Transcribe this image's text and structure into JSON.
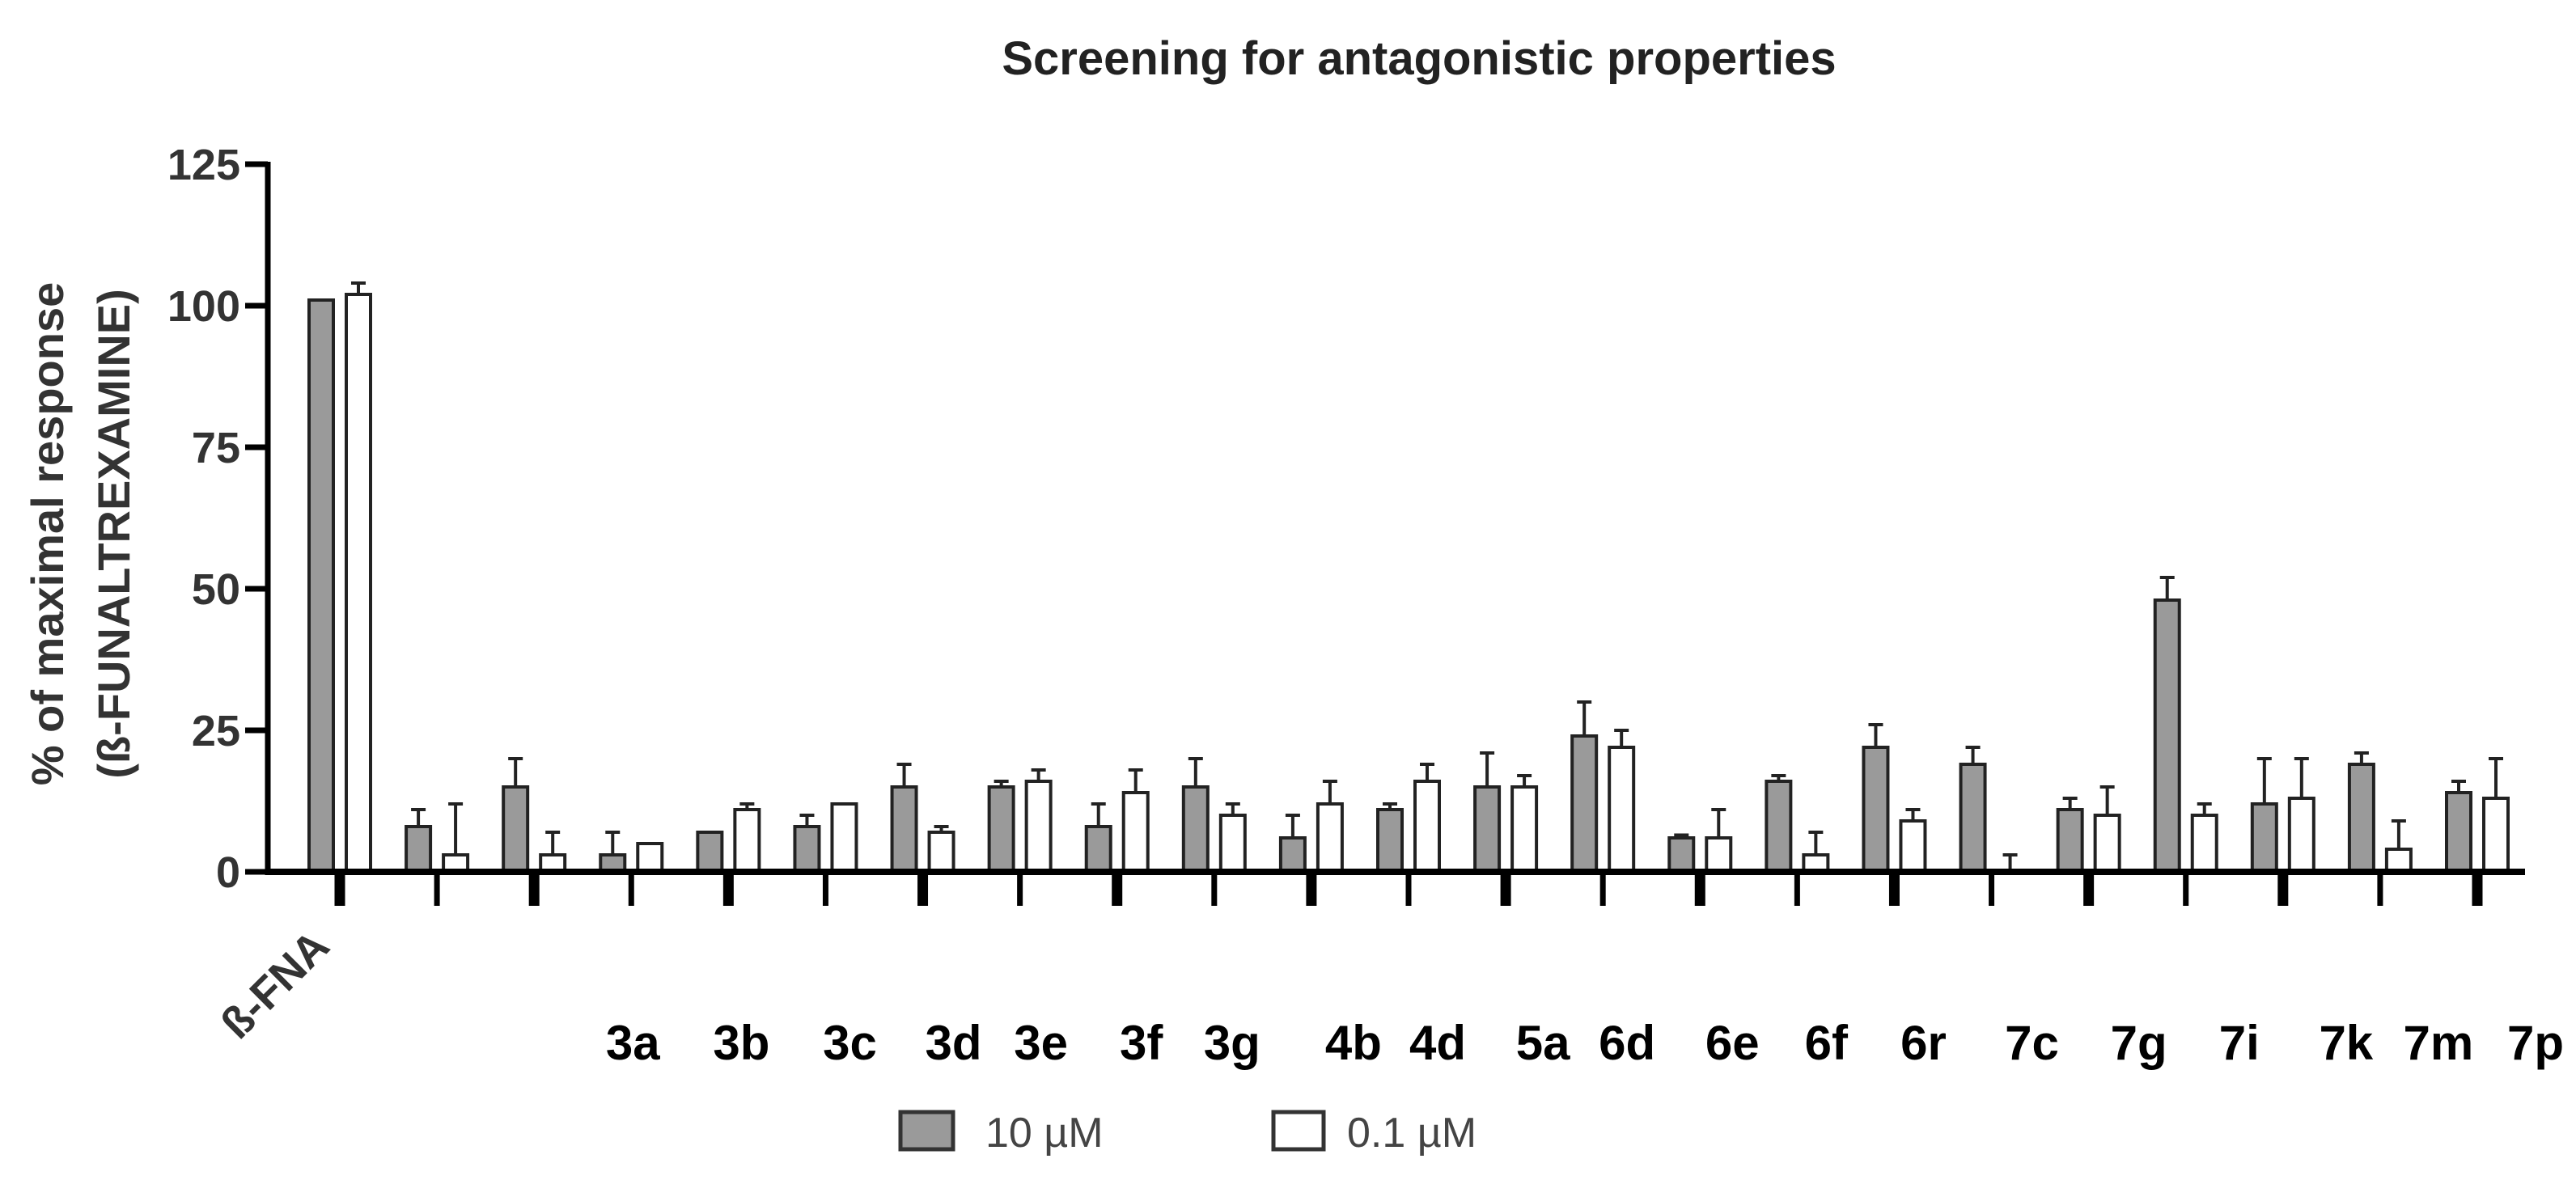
{
  "chart_data": {
    "type": "bar",
    "title": "Screening for antagonistic properties",
    "ylabel": [
      "% of maximal response",
      "(ß-FUNALTREXAMINE)"
    ],
    "xlabel": "",
    "ylim": [
      0,
      125
    ],
    "yticks": [
      0,
      25,
      50,
      75,
      100,
      125
    ],
    "grid": false,
    "legend_placement": "bottom",
    "categories": [
      "ß-FNA",
      "",
      "",
      "3a",
      "3b",
      "3c",
      "3d",
      "3e",
      "3f",
      "3g",
      "4b",
      "4d",
      "5a",
      "6d",
      "6e",
      "6f",
      "6r",
      "7c",
      "7g",
      "7i",
      "7k",
      "7m",
      "7p"
    ],
    "series": [
      {
        "name": "10 µM",
        "color": "#9a9a9a",
        "values": [
          101,
          8,
          15,
          3,
          7,
          8,
          15,
          15,
          8,
          15,
          6,
          11,
          15,
          24,
          6,
          16,
          22,
          19,
          11,
          48,
          12,
          19,
          14
        ],
        "errors": [
          0,
          3,
          5,
          4,
          0,
          2,
          4,
          1,
          4,
          5,
          4,
          1,
          6,
          6,
          0.5,
          1,
          4,
          3,
          2,
          4,
          8,
          2,
          2
        ]
      },
      {
        "name": "0.1 µM",
        "color": "#ffffff",
        "values": [
          102,
          3,
          3,
          5,
          11,
          12,
          7,
          16,
          14,
          10,
          12,
          16,
          15,
          22,
          6,
          3,
          9,
          0,
          10,
          10,
          13,
          4,
          13
        ],
        "errors": [
          2,
          9,
          4,
          0,
          1,
          0,
          1,
          2,
          4,
          2,
          4,
          3,
          2,
          3,
          5,
          4,
          2,
          3,
          5,
          2,
          7,
          5,
          7
        ]
      }
    ]
  }
}
